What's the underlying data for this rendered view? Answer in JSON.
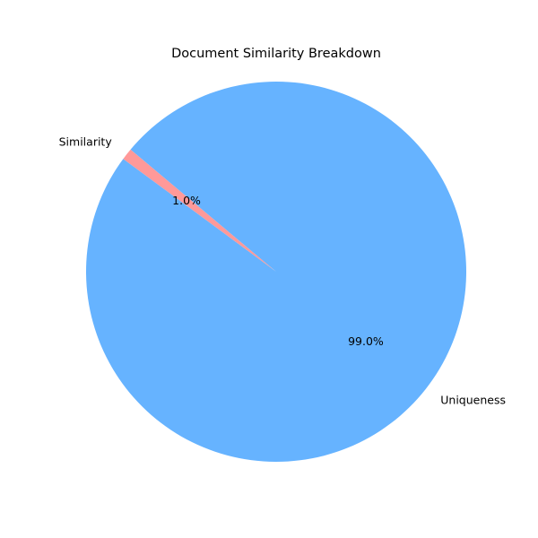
{
  "chart_data": {
    "type": "pie",
    "title": "Document Similarity Breakdown",
    "slices": [
      {
        "label": "Similarity",
        "value": 1.0,
        "pct_label": "1.0%",
        "color": "#ff9999"
      },
      {
        "label": "Uniqueness",
        "value": 99.0,
        "pct_label": "99.0%",
        "color": "#66b3ff"
      }
    ],
    "start_angle_deg": 140,
    "direction": "counterclockwise"
  }
}
